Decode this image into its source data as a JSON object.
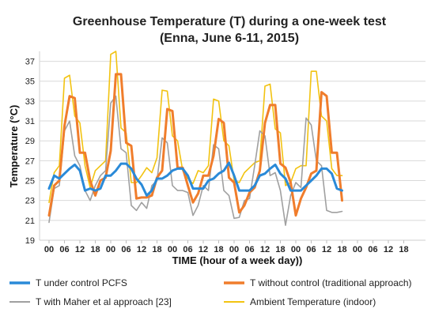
{
  "chart_data": {
    "type": "line",
    "title_line1": "Greenhouse  Temperature (T) during a one-week test",
    "title_line2": "(Enna, June 6-11, 2015)",
    "xlabel": "TIME (hour of a week day))",
    "ylabel": "Temperature (°C)",
    "ylim": [
      19,
      38
    ],
    "yticks": [
      19,
      21,
      23,
      25,
      27,
      29,
      31,
      33,
      35,
      37
    ],
    "x_tick_labels": [
      "00",
      "06",
      "12",
      "18",
      "00",
      "06",
      "12",
      "18",
      "00",
      "06",
      "12",
      "18",
      "00",
      "06",
      "12",
      "18",
      "00",
      "06",
      "12",
      "18",
      "00",
      "06",
      "12",
      "18"
    ],
    "x_step_hours": 2,
    "grid": true,
    "legend_position": "bottom",
    "series": [
      {
        "name": "T under control PCFS",
        "color": "#2a8ad8",
        "values": [
          24.2,
          25.5,
          25.2,
          25.7,
          26.2,
          26.6,
          26.0,
          24.0,
          24.2,
          24.0,
          24.2,
          25.5,
          25.5,
          26.0,
          26.7,
          26.7,
          26.2,
          25.2,
          24.6,
          23.5,
          24.0,
          25.2,
          25.2,
          25.5,
          26.0,
          26.2,
          26.2,
          25.5,
          24.2,
          24.2,
          24.2,
          25.0,
          25.2,
          25.7,
          26.0,
          26.8,
          25.5,
          24.0,
          24.0,
          24.0,
          24.5,
          25.5,
          25.7,
          26.2,
          26.6,
          25.7,
          25.2,
          24.0,
          24.0,
          24.0,
          24.5,
          25.0,
          25.5,
          26.2,
          26.2,
          25.7,
          24.2,
          24.0
        ]
      },
      {
        "name": "T without control (traditional approach)",
        "color": "#f07d2c",
        "values": [
          21.5,
          24.5,
          25.0,
          30.5,
          33.5,
          33.3,
          27.8,
          27.8,
          25.0,
          23.5,
          25.0,
          25.3,
          28.0,
          35.7,
          35.7,
          28.8,
          28.5,
          23.2,
          23.3,
          23.3,
          23.5,
          25.3,
          26.0,
          32.2,
          32.0,
          26.3,
          26.3,
          24.5,
          22.8,
          23.7,
          25.5,
          25.5,
          27.5,
          31.2,
          30.8,
          25.3,
          24.8,
          21.8,
          22.5,
          23.8,
          24.3,
          26.0,
          30.8,
          32.6,
          32.6,
          26.7,
          26.3,
          24.8,
          21.5,
          23.2,
          24.3,
          25.7,
          26.0,
          33.9,
          33.5,
          27.8,
          27.8,
          23.0
        ]
      },
      {
        "name": "T with Maher et al approach [23]",
        "color": "#a0a0a0",
        "values": [
          20.8,
          24.2,
          24.5,
          30.0,
          31.0,
          27.5,
          26.5,
          24.0,
          23.0,
          24.5,
          25.5,
          26.0,
          32.8,
          33.5,
          28.2,
          27.8,
          22.5,
          22.0,
          22.8,
          22.2,
          24.5,
          25.0,
          29.3,
          28.8,
          24.5,
          24.0,
          24.0,
          23.8,
          21.5,
          22.5,
          24.5,
          24.0,
          28.6,
          28.2,
          24.0,
          23.5,
          21.2,
          21.3,
          23.0,
          23.2,
          26.5,
          30.0,
          29.5,
          25.5,
          25.8,
          24.0,
          20.5,
          23.5,
          24.8,
          24.3,
          31.3,
          30.6,
          27.0,
          26.5,
          22.0,
          21.8,
          21.8,
          21.9
        ]
      },
      {
        "name": "Ambient Temperature (indoor)",
        "color": "#f2c311",
        "values": [
          22.8,
          25.8,
          26.5,
          35.3,
          35.6,
          31.5,
          30.8,
          26.5,
          24.3,
          26.0,
          26.5,
          27.0,
          37.7,
          38.0,
          30.3,
          29.8,
          24.8,
          24.8,
          25.5,
          26.3,
          25.8,
          27.3,
          34.1,
          34.0,
          29.5,
          29.0,
          26.0,
          25.2,
          24.7,
          26.0,
          25.8,
          26.5,
          33.2,
          33.0,
          29.0,
          28.5,
          25.0,
          24.8,
          25.8,
          26.3,
          26.8,
          27.0,
          34.5,
          34.7,
          30.2,
          29.8,
          24.5,
          24.8,
          26.2,
          26.5,
          26.5,
          36.0,
          36.0,
          31.5,
          31.0,
          26.2,
          25.5,
          25.5
        ]
      }
    ]
  }
}
